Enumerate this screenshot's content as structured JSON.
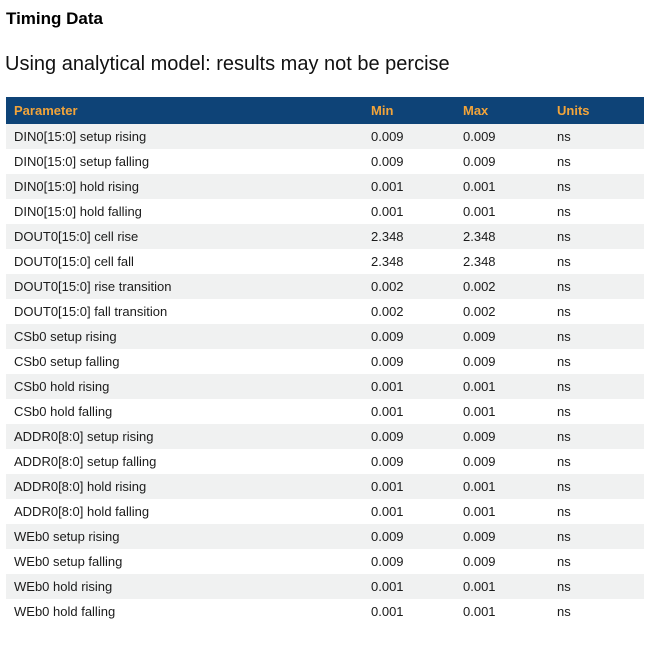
{
  "page": {
    "title": "Timing Data",
    "subtitle": "Using analytical model: results may not be percise"
  },
  "table": {
    "columns": [
      "Parameter",
      "Min",
      "Max",
      "Units"
    ],
    "rows": [
      {
        "parameter": "DIN0[15:0] setup rising",
        "min": "0.009",
        "max": "0.009",
        "units": "ns"
      },
      {
        "parameter": "DIN0[15:0] setup falling",
        "min": "0.009",
        "max": "0.009",
        "units": "ns"
      },
      {
        "parameter": "DIN0[15:0] hold rising",
        "min": "0.001",
        "max": "0.001",
        "units": "ns"
      },
      {
        "parameter": "DIN0[15:0] hold falling",
        "min": "0.001",
        "max": "0.001",
        "units": "ns"
      },
      {
        "parameter": "DOUT0[15:0] cell rise",
        "min": "2.348",
        "max": "2.348",
        "units": "ns"
      },
      {
        "parameter": "DOUT0[15:0] cell fall",
        "min": "2.348",
        "max": "2.348",
        "units": "ns"
      },
      {
        "parameter": "DOUT0[15:0] rise transition",
        "min": "0.002",
        "max": "0.002",
        "units": "ns"
      },
      {
        "parameter": "DOUT0[15:0] fall transition",
        "min": "0.002",
        "max": "0.002",
        "units": "ns"
      },
      {
        "parameter": "CSb0 setup rising",
        "min": "0.009",
        "max": "0.009",
        "units": "ns"
      },
      {
        "parameter": "CSb0 setup falling",
        "min": "0.009",
        "max": "0.009",
        "units": "ns"
      },
      {
        "parameter": "CSb0 hold rising",
        "min": "0.001",
        "max": "0.001",
        "units": "ns"
      },
      {
        "parameter": "CSb0 hold falling",
        "min": "0.001",
        "max": "0.001",
        "units": "ns"
      },
      {
        "parameter": "ADDR0[8:0] setup rising",
        "min": "0.009",
        "max": "0.009",
        "units": "ns"
      },
      {
        "parameter": "ADDR0[8:0] setup falling",
        "min": "0.009",
        "max": "0.009",
        "units": "ns"
      },
      {
        "parameter": "ADDR0[8:0] hold rising",
        "min": "0.001",
        "max": "0.001",
        "units": "ns"
      },
      {
        "parameter": "ADDR0[8:0] hold falling",
        "min": "0.001",
        "max": "0.001",
        "units": "ns"
      },
      {
        "parameter": "WEb0 setup rising",
        "min": "0.009",
        "max": "0.009",
        "units": "ns"
      },
      {
        "parameter": "WEb0 setup falling",
        "min": "0.009",
        "max": "0.009",
        "units": "ns"
      },
      {
        "parameter": "WEb0 hold rising",
        "min": "0.001",
        "max": "0.001",
        "units": "ns"
      },
      {
        "parameter": "WEb0 hold falling",
        "min": "0.001",
        "max": "0.001",
        "units": "ns"
      }
    ]
  },
  "colors": {
    "header_bg": "#0e4377",
    "header_text": "#f2a43a",
    "row_alt_bg": "#f0f1f1"
  }
}
